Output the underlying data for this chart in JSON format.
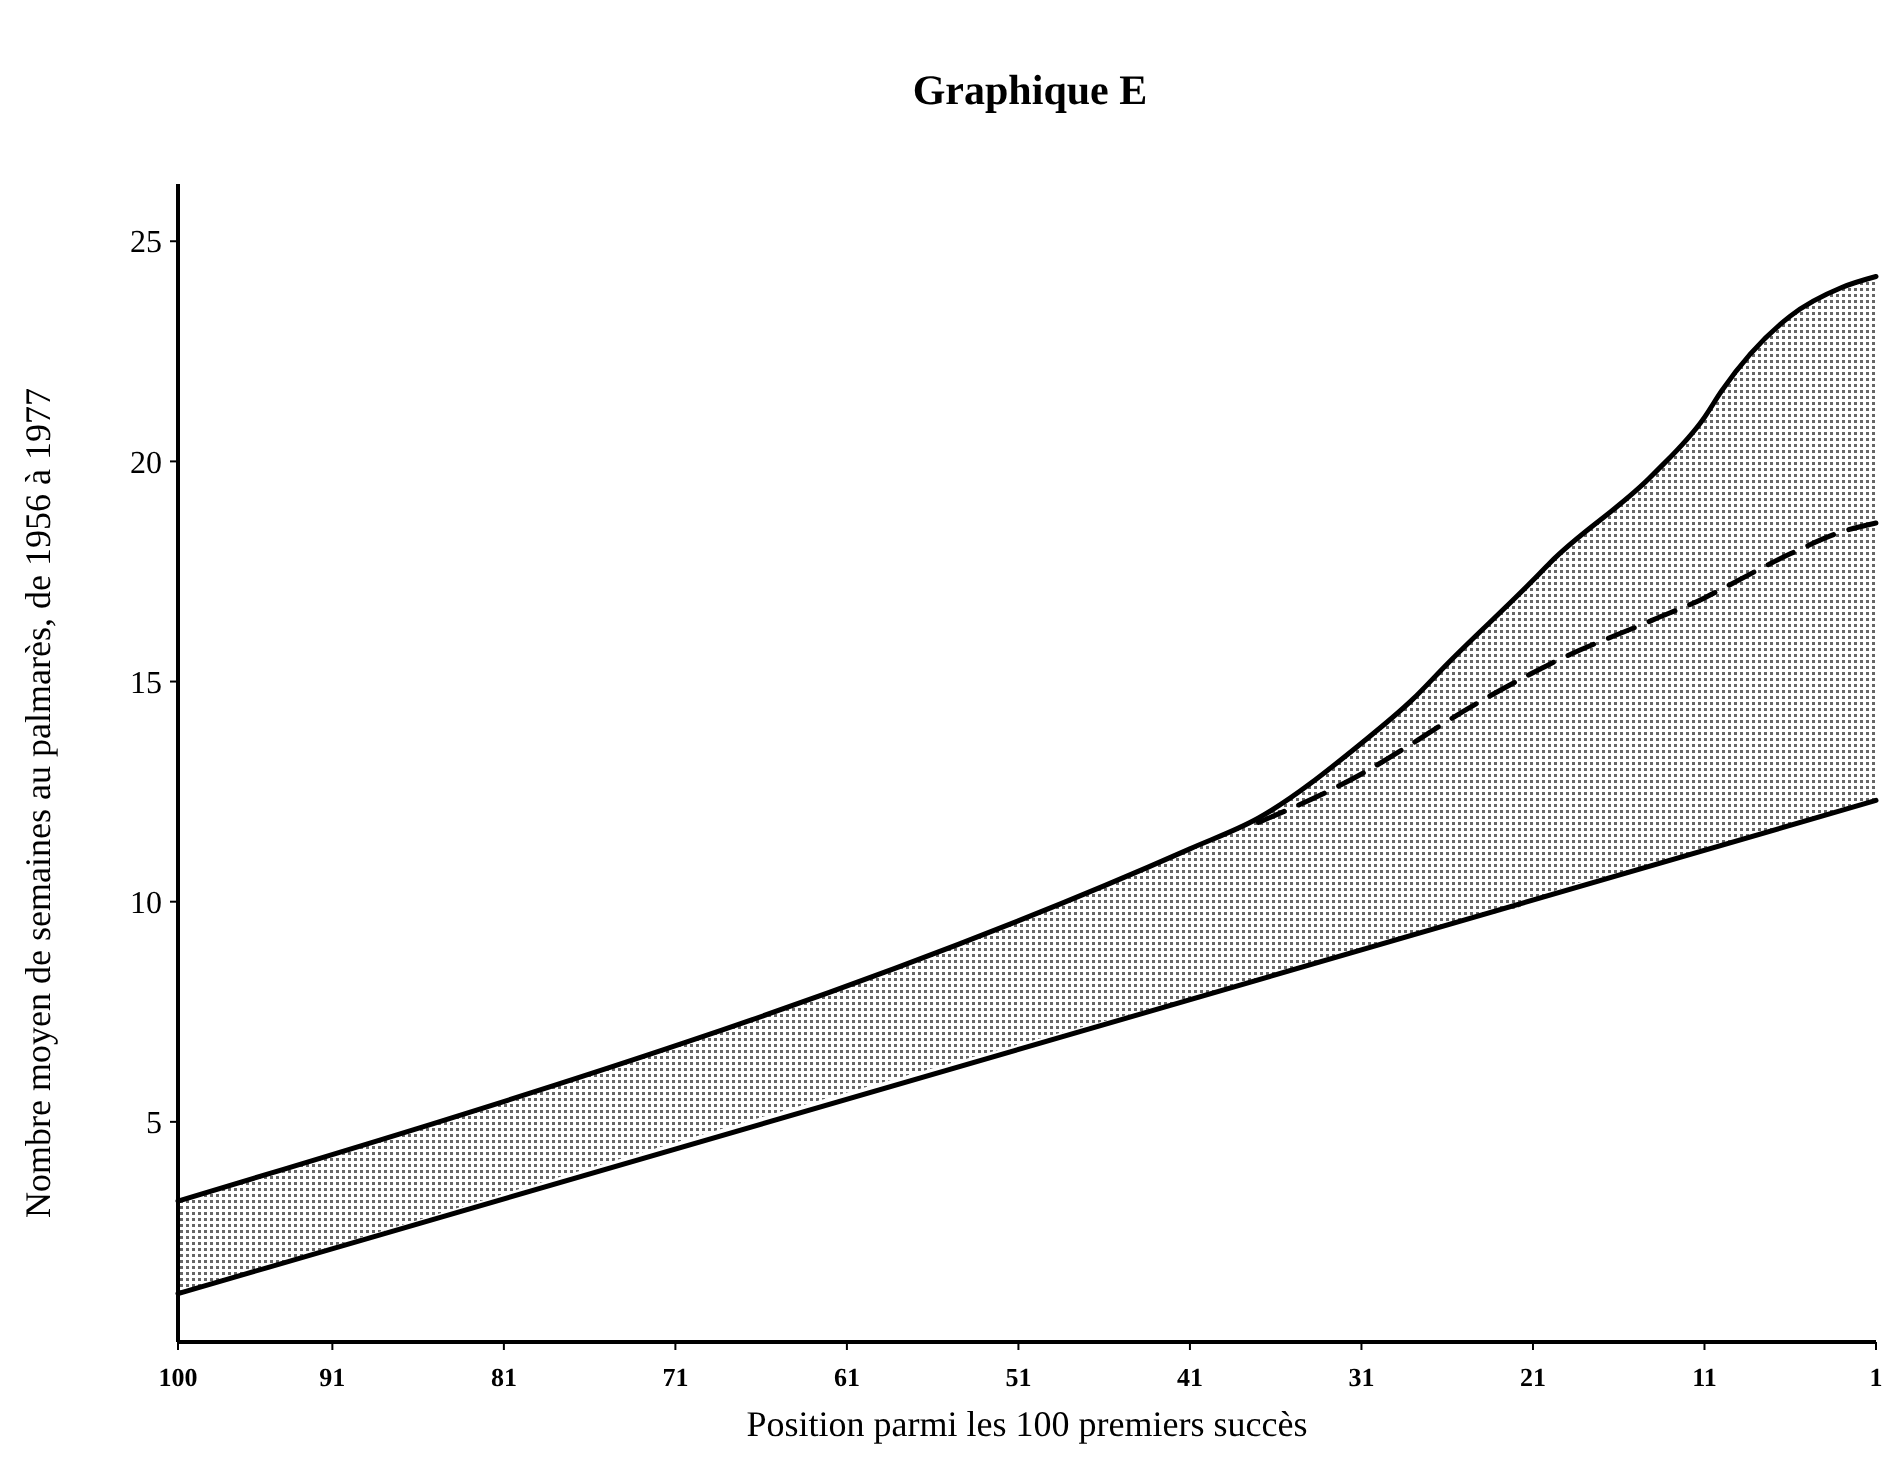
{
  "chart_data": {
    "type": "line",
    "title": "Graphique E",
    "xlabel": "Position parmi les 100 premiers succès",
    "ylabel": "Nombre moyen de semaines au palmarès, de 1956 à 1977",
    "xlim": [
      100,
      1
    ],
    "xticks": [
      100,
      91,
      81,
      71,
      61,
      51,
      41,
      31,
      21,
      11,
      1
    ],
    "ylim": [
      0,
      26.3
    ],
    "yticks": [
      5,
      10,
      15,
      20,
      25
    ],
    "grid": false,
    "marker": "none",
    "series": [
      {
        "color": "#000000",
        "line_style": "solid",
        "x": [
          100,
          41,
          37,
          31,
          28,
          26,
          21,
          20,
          14,
          11,
          10,
          6,
          3,
          1
        ],
        "values": [
          3.2,
          11.2,
          11.9,
          13.6,
          14.6,
          15.4,
          17.3,
          17.7,
          19.7,
          21.0,
          21.6,
          23.3,
          23.95,
          24.2
        ]
      },
      {
        "color": "#000000",
        "line_style": "solid",
        "x": [
          100,
          1
        ],
        "values": [
          1.1,
          12.3
        ]
      },
      {
        "color": "#000000",
        "line_style": "dashed",
        "x": [
          100,
          41,
          37,
          31,
          28,
          26,
          21,
          20,
          14,
          11,
          10,
          6,
          3,
          1
        ],
        "values": [
          null,
          null,
          11.8,
          12.9,
          13.6,
          14.1,
          15.2,
          15.4,
          16.4,
          16.9,
          17.1,
          17.9,
          18.4,
          18.6
        ],
        "lower": [
          1.1,
          7.8,
          8.2,
          8.9,
          9.2,
          9.5,
          10.0,
          10.2,
          10.8,
          11.2,
          11.3,
          11.7,
          12.1,
          12.3
        ],
        "upper": [
          3.2,
          11.2,
          11.9,
          13.6,
          14.6,
          15.4,
          17.3,
          17.7,
          19.7,
          21.0,
          21.6,
          23.3,
          23.95,
          24.2
        ]
      }
    ]
  }
}
